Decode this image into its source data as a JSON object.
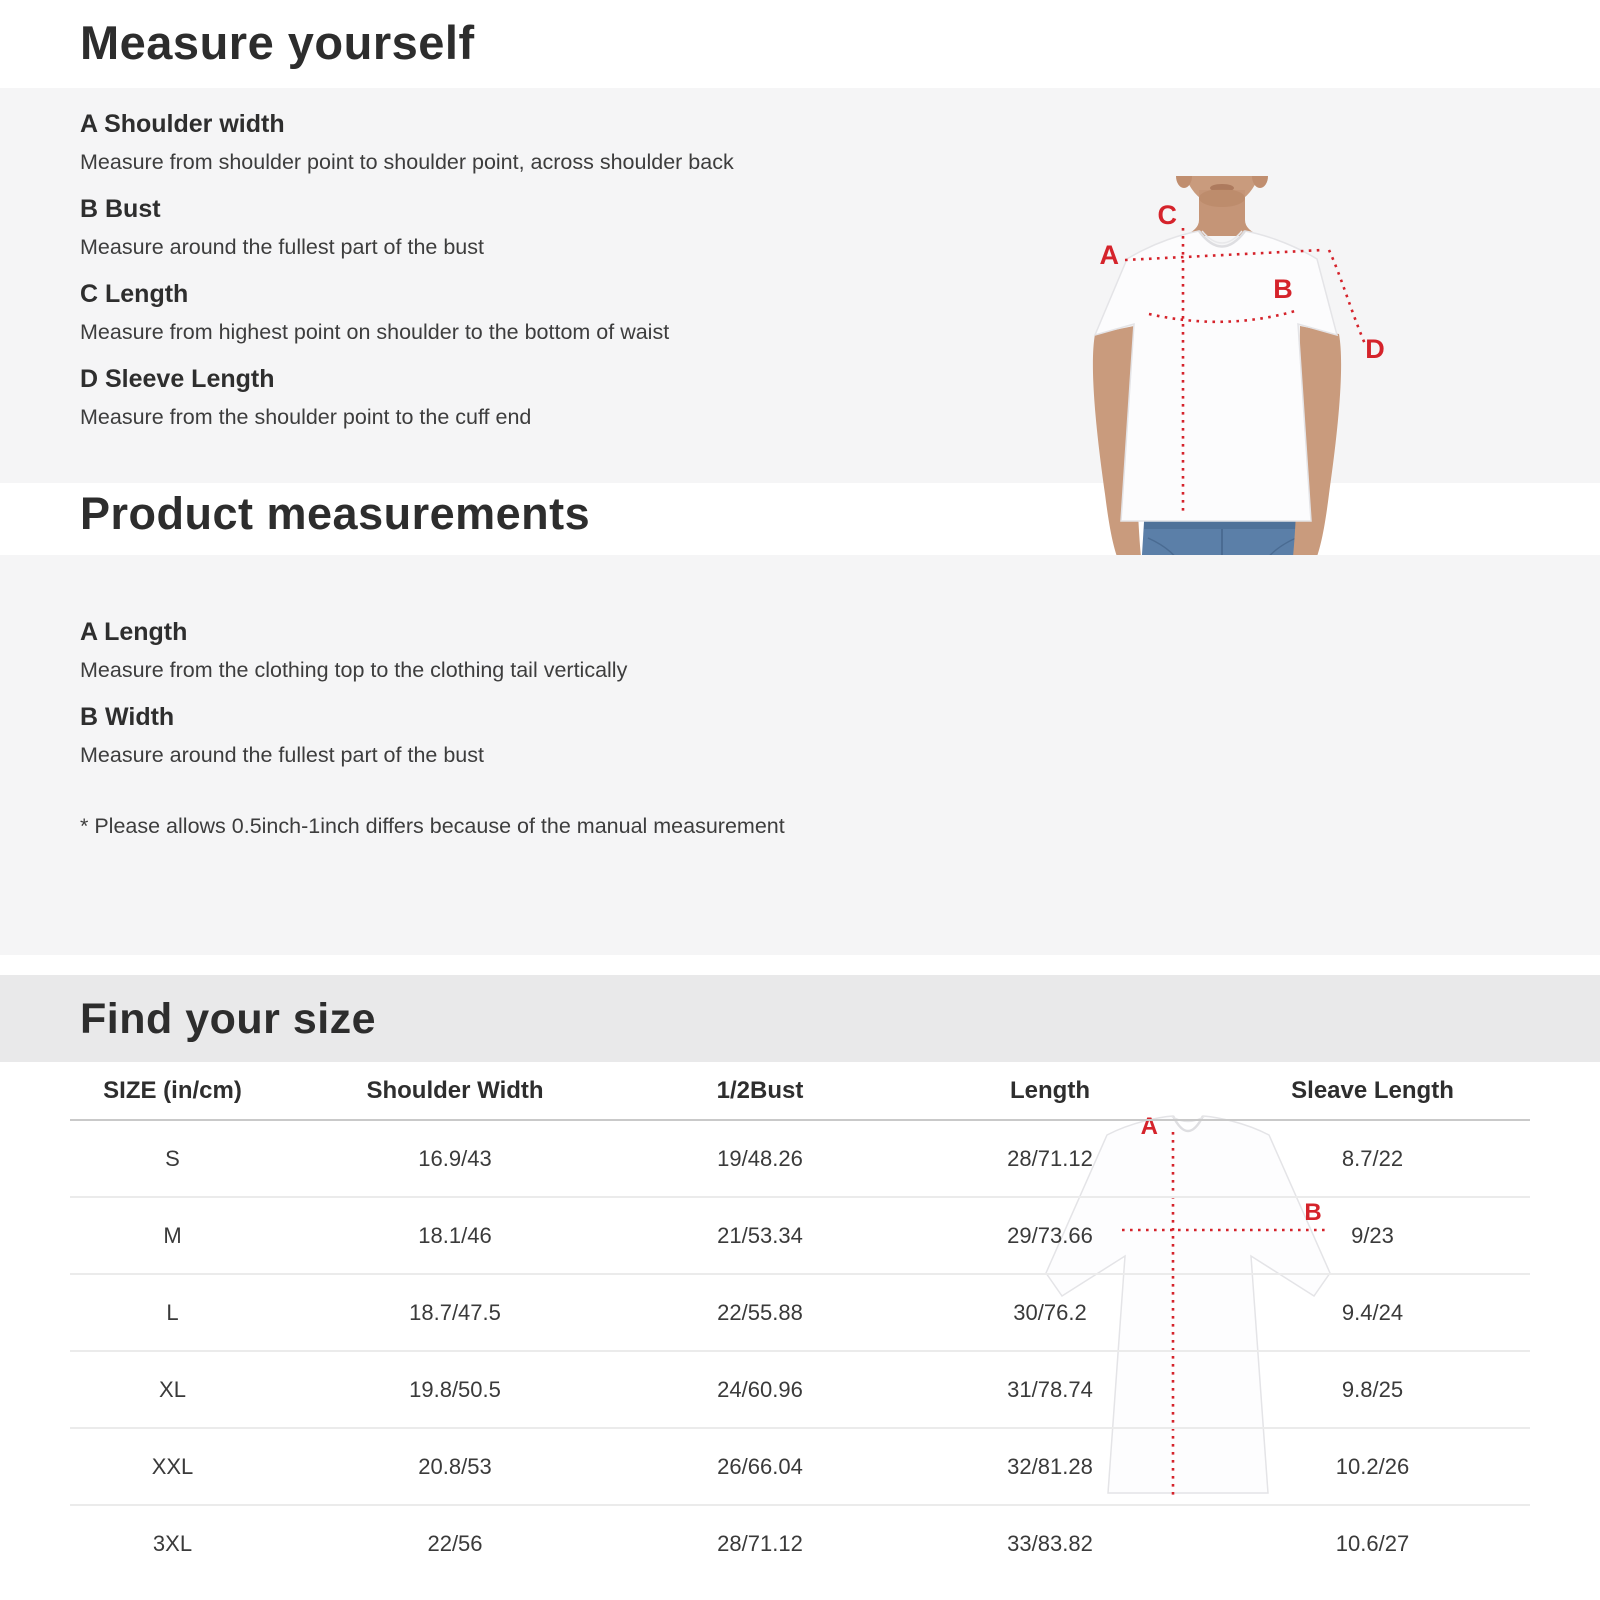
{
  "page": {
    "accent_red": "#d5232b",
    "band_gray": "#f5f5f6",
    "find_band_gray": "#e9e9ea"
  },
  "measure_yourself": {
    "title": "Measure yourself",
    "items": [
      {
        "label": "A Shoulder width",
        "desc": "Measure from shoulder point to shoulder point, across shoulder back"
      },
      {
        "label": "B Bust",
        "desc": "Measure around the fullest part of the bust"
      },
      {
        "label": "C Length",
        "desc": "Measure from highest point on shoulder to the bottom of waist"
      },
      {
        "label": "D Sleeve Length",
        "desc": "Measure from the shoulder point to the cuff end"
      }
    ],
    "figure_labels": {
      "a": "A",
      "b": "B",
      "c": "C",
      "d": "D"
    }
  },
  "product_measurements": {
    "title": "Product measurements",
    "items": [
      {
        "label": "A Length",
        "desc": "Measure from the clothing top to the clothing tail vertically"
      },
      {
        "label": "B Width",
        "desc": "Measure around the fullest part of the bust"
      }
    ],
    "note": "* Please allows 0.5inch-1inch differs because of the  manual measurement",
    "figure_labels": {
      "a": "A",
      "b": "B"
    }
  },
  "find_your_size": {
    "title": "Find your size",
    "table": {
      "headers": [
        "SIZE (in/cm)",
        "Shoulder Width",
        "1/2Bust",
        "Length",
        "Sleave Length"
      ],
      "rows": [
        [
          "S",
          "16.9/43",
          "19/48.26",
          "28/71.12",
          "8.7/22"
        ],
        [
          "M",
          "18.1/46",
          "21/53.34",
          "29/73.66",
          "9/23"
        ],
        [
          "L",
          "18.7/47.5",
          "22/55.88",
          "30/76.2",
          "9.4/24"
        ],
        [
          "XL",
          "19.8/50.5",
          "24/60.96",
          "31/78.74",
          "9.8/25"
        ],
        [
          "XXL",
          "20.8/53",
          "26/66.04",
          "32/81.28",
          "10.2/26"
        ],
        [
          "3XL",
          "22/56",
          "28/71.12",
          "33/83.82",
          "10.6/27"
        ]
      ]
    }
  }
}
